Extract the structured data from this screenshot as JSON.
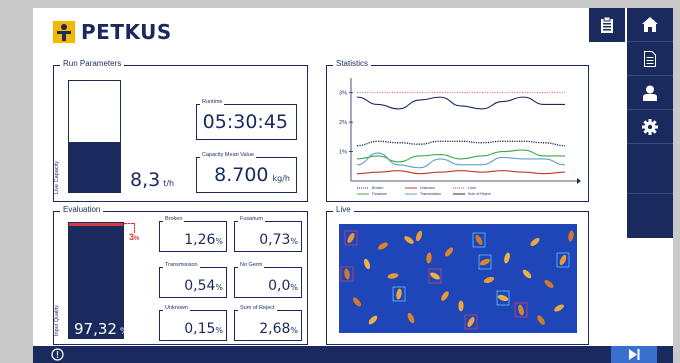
{
  "header": {
    "brand": "PETKUS"
  },
  "nav": {
    "icons": [
      "clipboard-icon",
      "home-icon",
      "document-icon",
      "user-icon",
      "gear-icon"
    ]
  },
  "run": {
    "title": "Run Parameters",
    "vertical_label": "Live Capacity",
    "capacity_value": "8,3",
    "capacity_unit": "t/h",
    "capacity_fill": 0.45,
    "runtime_label": "Runtime",
    "runtime_value": "05:30:45",
    "mean_label": "Capacity Mean Value",
    "mean_value": "8.700",
    "mean_unit": "kg/h"
  },
  "statistics": {
    "title": "Statistics"
  },
  "chart_data": {
    "type": "line",
    "title": "",
    "ylabel": "",
    "ylim": [
      0,
      3.5
    ],
    "y_ticks": [
      "3%",
      "2%",
      "1%"
    ],
    "x": [
      0,
      1,
      2,
      3,
      4,
      5,
      6,
      7,
      8,
      9,
      10
    ],
    "series": [
      {
        "name": "Limit",
        "style": "dotted",
        "color": "#d63a3a",
        "values": [
          3,
          3,
          3,
          3,
          3,
          3,
          3,
          3,
          3,
          3,
          3
        ]
      },
      {
        "name": "Sum of Reject",
        "color": "#1b2a5e",
        "values": [
          2.85,
          2.6,
          2.45,
          2.75,
          2.85,
          2.55,
          2.45,
          2.7,
          2.85,
          2.6,
          2.6
        ]
      },
      {
        "name": "Broken",
        "style": "dotted",
        "color": "#1b2a5e",
        "values": [
          1.2,
          1.35,
          1.3,
          1.25,
          1.35,
          1.35,
          1.3,
          1.35,
          1.35,
          1.3,
          1.2
        ]
      },
      {
        "name": "Fusarium",
        "color": "#3aa84a",
        "values": [
          0.75,
          0.85,
          0.65,
          0.85,
          0.9,
          0.75,
          0.85,
          1.0,
          1.05,
          0.85,
          0.85
        ]
      },
      {
        "name": "Transmission",
        "color": "#5aa0c8",
        "values": [
          0.55,
          0.95,
          0.55,
          0.45,
          0.75,
          0.55,
          0.55,
          0.8,
          0.75,
          0.75,
          0.55
        ]
      },
      {
        "name": "Unknown",
        "color": "#c0392b",
        "values": [
          0.25,
          0.3,
          0.35,
          0.25,
          0.3,
          0.35,
          0.3,
          0.35,
          0.3,
          0.25,
          0.3
        ]
      }
    ],
    "legend": [
      "Broken",
      "Unknown",
      "Limit",
      "Fusarium",
      "Transmission",
      "Sum of Reject"
    ]
  },
  "evaluation": {
    "title": "Evaluation",
    "vertical_label": "Input Quality",
    "quality_value": "97,32",
    "quality_unit": "%",
    "quality_fill": 0.9732,
    "limit_value": "3",
    "limit_unit": "%",
    "fields": [
      {
        "label": "Broken",
        "value": "1,26",
        "unit": "%"
      },
      {
        "label": "Fusarium",
        "value": "0,73",
        "unit": "%"
      },
      {
        "label": "Transmission",
        "value": "0,54",
        "unit": "%"
      },
      {
        "label": "No Germ",
        "value": "0,0",
        "unit": "%"
      },
      {
        "label": "Unknown",
        "value": "0,15",
        "unit": "%"
      },
      {
        "label": "Sum of Reject",
        "value": "2,68",
        "unit": "%"
      }
    ]
  },
  "live": {
    "title": "Live"
  },
  "colors": {
    "navy": "#1b2a5e",
    "accent_red": "#d63a3a",
    "play_blue": "#3a6fd0",
    "logo_yellow": "#f5b800"
  }
}
